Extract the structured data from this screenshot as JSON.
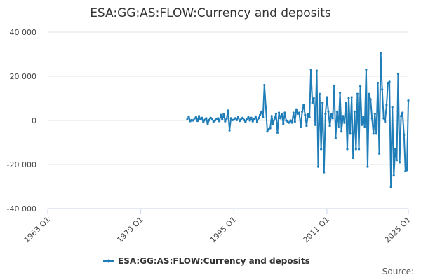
{
  "chart_data": {
    "type": "line",
    "title": "ESA:GG:AS:FLOW:Currency and deposits",
    "source": "Source:",
    "legend": "bottom",
    "grid": true,
    "xlim": [
      "1963 Q1",
      "2025 Q1"
    ],
    "xticks": [
      "1963 Q1",
      "1979 Q1",
      "1995 Q1",
      "2011 Q1",
      "2025 Q1"
    ],
    "ylim": [
      -40000,
      40000
    ],
    "yticks": [
      {
        "value": -40000,
        "label": "-40 000"
      },
      {
        "value": -20000,
        "label": "-20 000"
      },
      {
        "value": 0,
        "label": "0"
      },
      {
        "value": 20000,
        "label": "20 000"
      },
      {
        "value": 40000,
        "label": "40 000"
      }
    ],
    "x": [
      "1987 Q1",
      "1987 Q2",
      "1987 Q3",
      "1987 Q4",
      "1988 Q1",
      "1988 Q2",
      "1988 Q3",
      "1988 Q4",
      "1989 Q1",
      "1989 Q2",
      "1989 Q3",
      "1989 Q4",
      "1990 Q1",
      "1990 Q2",
      "1990 Q3",
      "1990 Q4",
      "1991 Q1",
      "1991 Q2",
      "1991 Q3",
      "1991 Q4",
      "1992 Q1",
      "1992 Q2",
      "1992 Q3",
      "1992 Q4",
      "1993 Q1",
      "1993 Q2",
      "1993 Q3",
      "1993 Q4",
      "1994 Q1",
      "1994 Q2",
      "1994 Q3",
      "1994 Q4",
      "1995 Q1",
      "1995 Q2",
      "1995 Q3",
      "1995 Q4",
      "1996 Q1",
      "1996 Q2",
      "1996 Q3",
      "1996 Q4",
      "1997 Q1",
      "1997 Q2",
      "1997 Q3",
      "1997 Q4",
      "1998 Q1",
      "1998 Q2",
      "1998 Q3",
      "1998 Q4",
      "1999 Q1",
      "1999 Q2",
      "1999 Q3",
      "1999 Q4",
      "2000 Q1",
      "2000 Q2",
      "2000 Q3",
      "2000 Q4",
      "2001 Q1",
      "2001 Q2",
      "2001 Q3",
      "2001 Q4",
      "2002 Q1",
      "2002 Q2",
      "2002 Q3",
      "2002 Q4",
      "2003 Q1",
      "2003 Q2",
      "2003 Q3",
      "2003 Q4",
      "2004 Q1",
      "2004 Q2",
      "2004 Q3",
      "2004 Q4",
      "2005 Q1",
      "2005 Q2",
      "2005 Q3",
      "2005 Q4",
      "2006 Q1",
      "2006 Q2",
      "2006 Q3",
      "2006 Q4",
      "2007 Q1",
      "2007 Q2",
      "2007 Q3",
      "2007 Q4",
      "2008 Q1",
      "2008 Q2",
      "2008 Q3",
      "2008 Q4",
      "2009 Q1",
      "2009 Q2",
      "2009 Q3",
      "2009 Q4",
      "2010 Q1",
      "2010 Q2",
      "2010 Q3",
      "2010 Q4",
      "2011 Q1",
      "2011 Q2",
      "2011 Q3",
      "2011 Q4",
      "2012 Q1",
      "2012 Q2",
      "2012 Q3",
      "2012 Q4",
      "2013 Q1",
      "2013 Q2",
      "2013 Q3",
      "2013 Q4",
      "2014 Q1",
      "2014 Q2",
      "2014 Q3",
      "2014 Q4",
      "2015 Q1",
      "2015 Q2",
      "2015 Q3",
      "2015 Q4",
      "2016 Q1",
      "2016 Q2",
      "2016 Q3",
      "2016 Q4",
      "2017 Q1",
      "2017 Q2",
      "2017 Q3",
      "2017 Q4",
      "2018 Q1",
      "2018 Q2",
      "2018 Q3",
      "2018 Q4",
      "2019 Q1",
      "2019 Q2",
      "2019 Q3",
      "2019 Q4",
      "2020 Q1",
      "2020 Q2",
      "2020 Q3",
      "2020 Q4",
      "2021 Q1",
      "2021 Q2",
      "2021 Q3",
      "2021 Q4",
      "2022 Q1",
      "2022 Q2",
      "2022 Q3",
      "2022 Q4",
      "2023 Q1",
      "2023 Q2",
      "2023 Q3",
      "2023 Q4",
      "2024 Q1",
      "2024 Q2",
      "2024 Q3",
      "2024 Q4",
      "2025 Q1"
    ],
    "series": [
      {
        "name": "ESA:GG:AS:FLOW:Currency and deposits",
        "color": "#1f7db8",
        "values": [
          500,
          1800,
          -300,
          200,
          0,
          900,
          1500,
          -200,
          2000,
          500,
          1200,
          -800,
          300,
          1000,
          -1500,
          200,
          1200,
          800,
          -500,
          0,
          500,
          1000,
          -300,
          2500,
          500,
          2800,
          -400,
          800,
          4500,
          -4500,
          1000,
          200,
          300,
          1000,
          200,
          1500,
          -200,
          500,
          1200,
          300,
          -800,
          600,
          1500,
          0,
          1200,
          -400,
          600,
          1800,
          -600,
          1000,
          2500,
          4000,
          1500,
          16000,
          6000,
          -5000,
          -4000,
          -3500,
          2000,
          -1500,
          800,
          3000,
          -5500,
          3500,
          1000,
          3000,
          -1500,
          3500,
          0,
          -500,
          -1000,
          0,
          -1000,
          3500,
          -500,
          5000,
          3000,
          3500,
          -3000,
          4000,
          7000,
          2500,
          -2500,
          3000,
          1500,
          23000,
          8000,
          10000,
          -2000,
          22500,
          -21000,
          12000,
          -13000,
          8000,
          -23500,
          3000,
          10500,
          4000,
          -2500,
          3000,
          1000,
          15500,
          -8000,
          4000,
          -3000,
          12500,
          -5000,
          2000,
          -1000,
          8000,
          -13000,
          10000,
          -6000,
          10500,
          -17000,
          4000,
          -13000,
          12000,
          -13000,
          15500,
          -2000,
          1500,
          -3000,
          23000,
          -21000,
          12000,
          9500,
          1000,
          -6000,
          3000,
          -6000,
          17000,
          -15000,
          30500,
          14000,
          1000,
          -500,
          7000,
          17000,
          17500,
          -30000,
          6000,
          -25000,
          -13000,
          -18000,
          21000,
          -19000,
          2000,
          3500,
          -6500,
          -23000,
          -22500,
          9000
        ]
      }
    ]
  }
}
